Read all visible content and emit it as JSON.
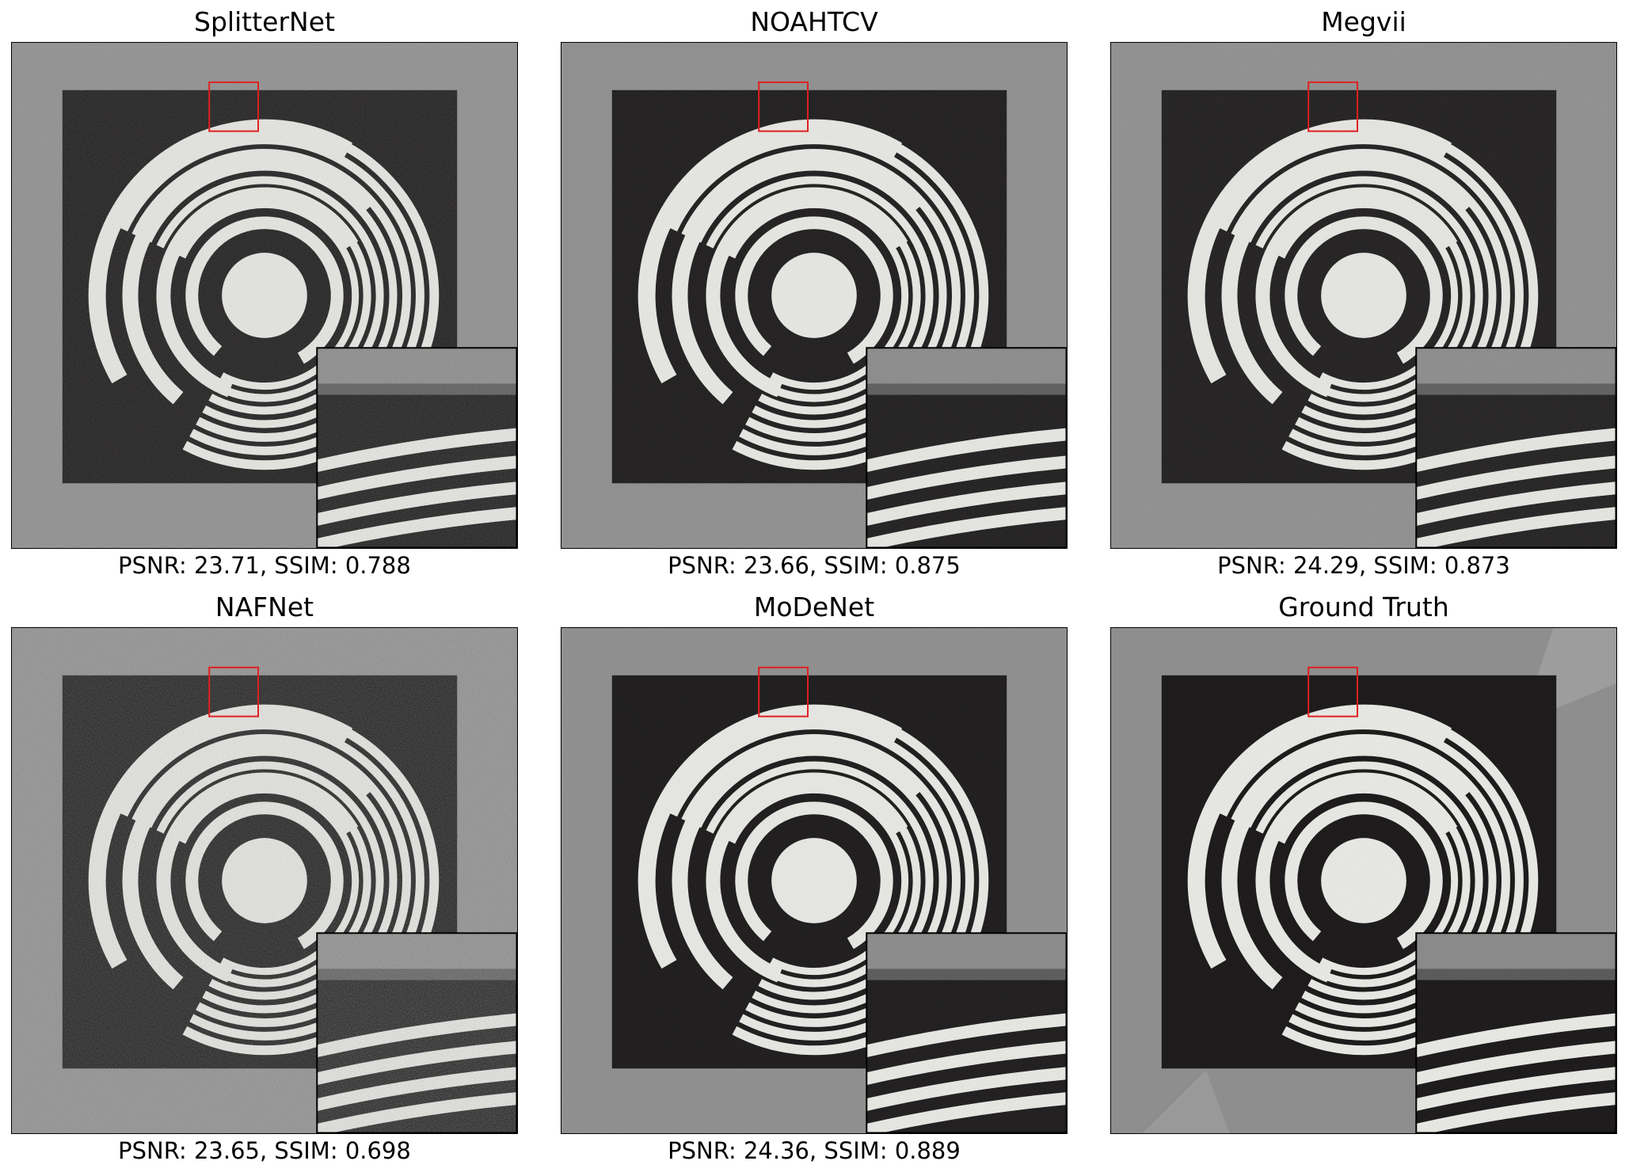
{
  "figure": {
    "panels": [
      {
        "title": "SplitterNet",
        "caption": "PSNR: 23.71, SSIM: 0.788",
        "noise": 0.55
      },
      {
        "title": "NOAHTCV",
        "caption": "PSNR: 23.66, SSIM: 0.875",
        "noise": 0.25
      },
      {
        "title": "Megvii",
        "caption": "PSNR: 24.29, SSIM: 0.873",
        "noise": 0.3
      },
      {
        "title": "NAFNet",
        "caption": "PSNR: 23.65, SSIM: 0.698",
        "noise": 0.85
      },
      {
        "title": "MoDeNet",
        "caption": "PSNR: 24.36, SSIM: 0.889",
        "noise": 0.15
      },
      {
        "title": "Ground Truth",
        "caption": "",
        "noise": 0.05
      }
    ]
  },
  "colors": {
    "background_gray": "#8e8e8e",
    "dark_square": "#1c1a1b",
    "ring_white": "#e6e6e2",
    "zoom_box": "#e02020",
    "frame": "#000000"
  }
}
